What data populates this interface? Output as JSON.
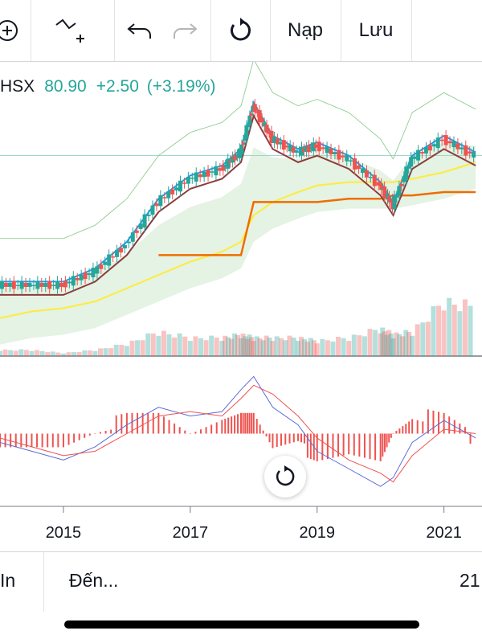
{
  "toolbar": {
    "load_label": "Nạp",
    "save_label": "Lưu",
    "icons": [
      "add-circle-icon",
      "indicator-icon",
      "undo-icon",
      "redo-icon",
      "refresh-icon"
    ]
  },
  "legend": {
    "symbol": "HSX",
    "price": "80.90",
    "change": "+2.50",
    "change_pct": "(+3.19%)",
    "color_up": "#26a69a"
  },
  "bottom_bar": {
    "interval_label": "In",
    "to_label": "Đến...",
    "right_label": "21"
  },
  "colors": {
    "up": "#26a69a",
    "down": "#ef5350",
    "tenkan": "#2196f3",
    "kijun": "#8d3b3b",
    "ma_yellow": "#ffeb3b",
    "ma_orange": "#ef6c00",
    "macd": "#5b6bd8",
    "signal": "#ef5350"
  },
  "chart_data": {
    "type": "candlestick",
    "xaxis_ticks": [
      "2015",
      "2017",
      "2019",
      "2021"
    ],
    "price_series": {
      "x": [
        "2014.0",
        "2014.5",
        "2015.0",
        "2015.5",
        "2016.0",
        "2016.5",
        "2017.0",
        "2017.5",
        "2017.8",
        "2018.0",
        "2018.3",
        "2018.7",
        "2019.0",
        "2019.5",
        "2020.0",
        "2020.2",
        "2020.5",
        "2021.0",
        "2021.5"
      ],
      "close": [
        30,
        30,
        30,
        34,
        42,
        55,
        62,
        65,
        70,
        84,
        74,
        70,
        72,
        68,
        60,
        54,
        68,
        74,
        69
      ]
    },
    "moving_average_yellow": [
      20,
      22,
      23,
      25,
      29,
      33,
      37,
      40,
      43,
      51,
      55,
      58,
      60,
      61,
      61,
      61,
      62,
      64,
      67
    ],
    "moving_average_orange": [
      null,
      null,
      null,
      null,
      null,
      39,
      39,
      39,
      39,
      55,
      55,
      55,
      55,
      56,
      56,
      57,
      57,
      58,
      58
    ],
    "volume_relative": [
      0.1,
      0.1,
      0.05,
      0.1,
      0.2,
      0.4,
      0.3,
      0.3,
      0.35,
      0.3,
      0.3,
      0.3,
      0.25,
      0.3,
      0.45,
      0.35,
      0.4,
      0.9,
      0.8
    ],
    "macd": [
      -2,
      -4,
      -6,
      -3,
      2,
      6,
      4,
      5,
      10,
      13,
      6,
      2,
      -4,
      -8,
      -12,
      -10,
      -2,
      3,
      -1
    ],
    "signal": [
      -1,
      -3,
      -5,
      -4,
      0,
      4,
      5,
      4,
      8,
      11,
      9,
      4,
      -1,
      -6,
      -9,
      -11,
      -5,
      1,
      0
    ]
  }
}
